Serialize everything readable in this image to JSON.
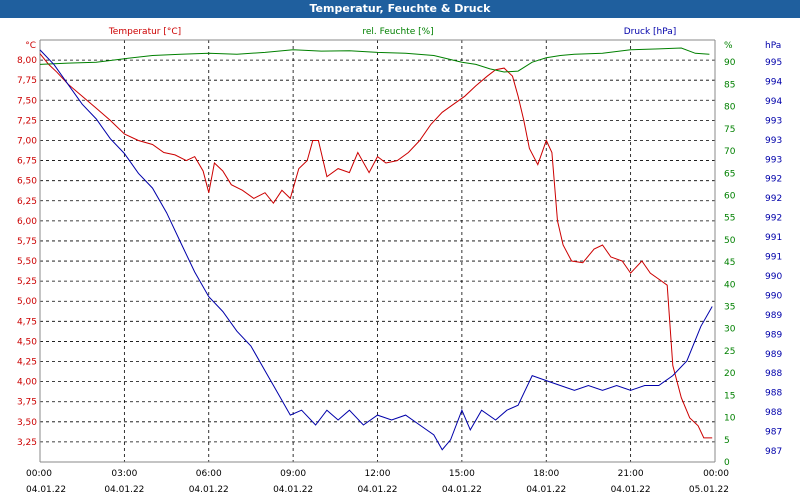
{
  "chart_data": {
    "type": "line",
    "title": "Temperatur, Feuchte & Druck",
    "x_ticks": [
      {
        "time": "00:00",
        "date": "04.01.22"
      },
      {
        "time": "03:00",
        "date": "04.01.22"
      },
      {
        "time": "06:00",
        "date": "04.01.22"
      },
      {
        "time": "09:00",
        "date": "04.01.22"
      },
      {
        "time": "12:00",
        "date": "04.01.22"
      },
      {
        "time": "15:00",
        "date": "04.01.22"
      },
      {
        "time": "18:00",
        "date": "04.01.22"
      },
      {
        "time": "21:00",
        "date": "04.01.22"
      },
      {
        "time": "00:00",
        "date": "05.01.22"
      }
    ],
    "xlim_hours": [
      0,
      24
    ],
    "grid": true,
    "axes": {
      "temperature": {
        "label": "Temperatur [°C]",
        "unit": "°C",
        "color": "#cc0000",
        "ylim": [
          3.0,
          8.25
        ],
        "ticks": [
          "3,25",
          "3,50",
          "3,75",
          "4,00",
          "4,25",
          "4,50",
          "4,75",
          "5,00",
          "5,25",
          "5,50",
          "5,75",
          "6,00",
          "6,25",
          "6,50",
          "6,75",
          "7,00",
          "7,25",
          "7,50",
          "7,75",
          "8,00"
        ]
      },
      "humidity": {
        "label": "rel. Feuchte [%]",
        "unit": "%",
        "color": "#008000",
        "ylim": [
          0,
          95
        ],
        "ticks": [
          "0",
          "5",
          "10",
          "15",
          "20",
          "25",
          "30",
          "35",
          "40",
          "45",
          "50",
          "55",
          "60",
          "65",
          "70",
          "75",
          "80",
          "85",
          "90"
        ]
      },
      "pressure": {
        "label": "Druck [hPa]",
        "unit": "hPa",
        "color": "#0000aa",
        "ylim": [
          986.75,
          995.3
        ],
        "ticks": [
          "987",
          "987",
          "988",
          "988",
          "988",
          "989",
          "989",
          "989",
          "990",
          "990",
          "991",
          "991",
          "992",
          "992",
          "992",
          "993",
          "993",
          "993",
          "994",
          "994",
          "995"
        ]
      }
    },
    "series": [
      {
        "name": "Temperatur [°C]",
        "axis": "temperature",
        "color": "#cc0000",
        "points": [
          [
            0,
            8.08
          ],
          [
            0.3,
            7.95
          ],
          [
            0.6,
            7.85
          ],
          [
            1.0,
            7.7
          ],
          [
            1.5,
            7.55
          ],
          [
            2.0,
            7.4
          ],
          [
            2.5,
            7.25
          ],
          [
            3.0,
            7.08
          ],
          [
            3.5,
            7.0
          ],
          [
            4.0,
            6.95
          ],
          [
            4.4,
            6.85
          ],
          [
            4.8,
            6.82
          ],
          [
            5.2,
            6.75
          ],
          [
            5.5,
            6.8
          ],
          [
            5.8,
            6.62
          ],
          [
            6.0,
            6.35
          ],
          [
            6.2,
            6.72
          ],
          [
            6.5,
            6.62
          ],
          [
            6.8,
            6.45
          ],
          [
            7.2,
            6.38
          ],
          [
            7.6,
            6.28
          ],
          [
            8.0,
            6.35
          ],
          [
            8.3,
            6.22
          ],
          [
            8.6,
            6.38
          ],
          [
            8.9,
            6.28
          ],
          [
            9.2,
            6.65
          ],
          [
            9.5,
            6.75
          ],
          [
            9.7,
            7.0
          ],
          [
            9.9,
            7.0
          ],
          [
            10.2,
            6.55
          ],
          [
            10.6,
            6.65
          ],
          [
            11.0,
            6.6
          ],
          [
            11.3,
            6.85
          ],
          [
            11.7,
            6.6
          ],
          [
            12.0,
            6.8
          ],
          [
            12.3,
            6.72
          ],
          [
            12.7,
            6.75
          ],
          [
            13.1,
            6.85
          ],
          [
            13.5,
            7.0
          ],
          [
            13.9,
            7.2
          ],
          [
            14.3,
            7.35
          ],
          [
            14.7,
            7.45
          ],
          [
            15.1,
            7.55
          ],
          [
            15.5,
            7.68
          ],
          [
            15.9,
            7.8
          ],
          [
            16.2,
            7.88
          ],
          [
            16.5,
            7.9
          ],
          [
            16.8,
            7.8
          ],
          [
            17.0,
            7.55
          ],
          [
            17.2,
            7.25
          ],
          [
            17.4,
            6.9
          ],
          [
            17.7,
            6.7
          ],
          [
            18.0,
            7.0
          ],
          [
            18.2,
            6.85
          ],
          [
            18.4,
            6.0
          ],
          [
            18.6,
            5.7
          ],
          [
            18.9,
            5.5
          ],
          [
            19.3,
            5.48
          ],
          [
            19.7,
            5.65
          ],
          [
            20.0,
            5.7
          ],
          [
            20.3,
            5.55
          ],
          [
            20.7,
            5.5
          ],
          [
            21.0,
            5.35
          ],
          [
            21.4,
            5.5
          ],
          [
            21.7,
            5.35
          ],
          [
            22.1,
            5.25
          ],
          [
            22.3,
            5.2
          ],
          [
            22.5,
            4.2
          ],
          [
            22.8,
            3.8
          ],
          [
            23.1,
            3.55
          ],
          [
            23.4,
            3.45
          ],
          [
            23.6,
            3.3
          ],
          [
            23.9,
            3.3
          ]
        ]
      },
      {
        "name": "rel. Feuchte [%]",
        "axis": "humidity",
        "color": "#008000",
        "points": [
          [
            0,
            89.5
          ],
          [
            1.0,
            89.8
          ],
          [
            2.0,
            90.0
          ],
          [
            3.0,
            90.8
          ],
          [
            4.0,
            91.5
          ],
          [
            5.0,
            91.8
          ],
          [
            6.0,
            92.0
          ],
          [
            7.0,
            91.8
          ],
          [
            8.0,
            92.2
          ],
          [
            9.0,
            92.8
          ],
          [
            10.0,
            92.5
          ],
          [
            11.0,
            92.6
          ],
          [
            12.0,
            92.2
          ],
          [
            13.0,
            92.0
          ],
          [
            14.0,
            91.5
          ],
          [
            15.0,
            90.0
          ],
          [
            15.5,
            89.5
          ],
          [
            16.0,
            88.5
          ],
          [
            16.5,
            87.8
          ],
          [
            17.0,
            88.0
          ],
          [
            17.5,
            90.0
          ],
          [
            18.0,
            91.0
          ],
          [
            18.5,
            91.5
          ],
          [
            19.0,
            91.8
          ],
          [
            20.0,
            92.0
          ],
          [
            21.0,
            92.8
          ],
          [
            22.0,
            93.0
          ],
          [
            22.8,
            93.2
          ],
          [
            23.3,
            92.0
          ],
          [
            23.8,
            91.8
          ]
        ]
      },
      {
        "name": "Druck [hPa]",
        "axis": "pressure",
        "color": "#0000aa",
        "points": [
          [
            0,
            995.1
          ],
          [
            0.5,
            994.8
          ],
          [
            1.0,
            994.4
          ],
          [
            1.5,
            994.0
          ],
          [
            2.0,
            993.7
          ],
          [
            2.5,
            993.3
          ],
          [
            3.0,
            993.0
          ],
          [
            3.5,
            992.6
          ],
          [
            4.0,
            992.3
          ],
          [
            4.5,
            991.8
          ],
          [
            5.0,
            991.2
          ],
          [
            5.5,
            990.6
          ],
          [
            6.0,
            990.1
          ],
          [
            6.5,
            989.8
          ],
          [
            7.0,
            989.4
          ],
          [
            7.5,
            989.1
          ],
          [
            8.0,
            988.6
          ],
          [
            8.5,
            988.1
          ],
          [
            8.9,
            987.7
          ],
          [
            9.3,
            987.8
          ],
          [
            9.8,
            987.5
          ],
          [
            10.2,
            987.8
          ],
          [
            10.6,
            987.6
          ],
          [
            11.0,
            987.8
          ],
          [
            11.5,
            987.5
          ],
          [
            12.0,
            987.7
          ],
          [
            12.5,
            987.6
          ],
          [
            13.0,
            987.7
          ],
          [
            13.5,
            987.5
          ],
          [
            14.0,
            987.3
          ],
          [
            14.3,
            987.0
          ],
          [
            14.6,
            987.2
          ],
          [
            15.0,
            987.8
          ],
          [
            15.3,
            987.4
          ],
          [
            15.7,
            987.8
          ],
          [
            16.2,
            987.6
          ],
          [
            16.6,
            987.8
          ],
          [
            17.0,
            987.9
          ],
          [
            17.5,
            988.5
          ],
          [
            18.0,
            988.4
          ],
          [
            18.5,
            988.3
          ],
          [
            19.0,
            988.2
          ],
          [
            19.5,
            988.3
          ],
          [
            20.0,
            988.2
          ],
          [
            20.5,
            988.3
          ],
          [
            21.0,
            988.2
          ],
          [
            21.5,
            988.3
          ],
          [
            22.0,
            988.3
          ],
          [
            22.5,
            988.5
          ],
          [
            23.0,
            988.8
          ],
          [
            23.5,
            989.5
          ],
          [
            23.9,
            989.9
          ]
        ]
      }
    ]
  }
}
